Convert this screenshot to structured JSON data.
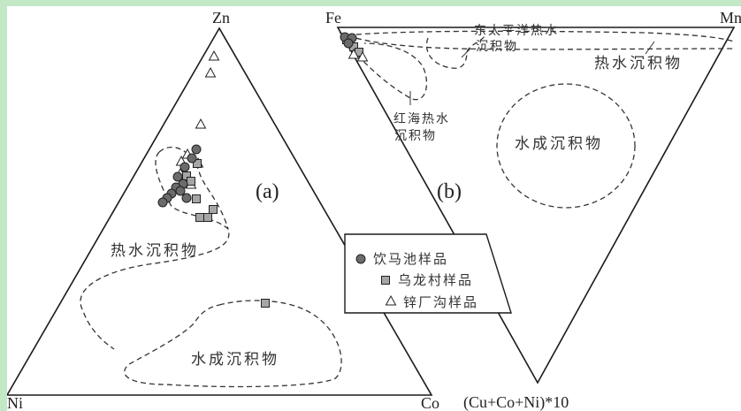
{
  "diagram_a": {
    "panel_label": "(a)",
    "vertices": {
      "top": "Zn",
      "left": "Ni",
      "right": "Co"
    },
    "regions": {
      "hydrothermal": "热水沉积物",
      "hydrogenous": "水成沉积物"
    }
  },
  "diagram_b": {
    "panel_label": "(b)",
    "vertices": {
      "left": "Fe",
      "right": "Mn",
      "bottom": "(Cu+Co+Ni)*10"
    },
    "regions": {
      "east_pacific": [
        "东太平洋热水",
        "沉积物"
      ],
      "red_sea": [
        "红海热水",
        "沉积物"
      ],
      "hydrothermal": "热水沉积物",
      "hydrogenous": "水成沉积物"
    }
  },
  "legend": {
    "items": [
      {
        "symbol": "circle",
        "label": "饮马池样品"
      },
      {
        "symbol": "square",
        "label": "乌龙村样品"
      },
      {
        "symbol": "triangle",
        "label": "锌厂沟样品"
      }
    ]
  },
  "colors": {
    "circle_fill": "#6b6b6b",
    "square_fill": "#a6a6a6",
    "line": "#1a1a1a"
  }
}
